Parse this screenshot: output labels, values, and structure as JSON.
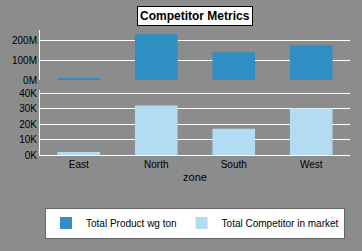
{
  "chart_data": [
    {
      "type": "bar",
      "title": "Competitor Metrics",
      "categories": [
        "East",
        "North",
        "South",
        "West"
      ],
      "series": [
        {
          "name": "Total Product wg ton",
          "color": "#2f8fc3",
          "values": [
            6000000,
            229000000,
            139000000,
            174000000
          ]
        }
      ],
      "ylim": [
        0,
        250000000
      ],
      "yticks": [
        {
          "value": 0,
          "label": "0M"
        },
        {
          "value": 100000000,
          "label": "100M"
        },
        {
          "value": 200000000,
          "label": "200M"
        }
      ],
      "grid": true,
      "legend": "bottom"
    },
    {
      "type": "bar",
      "xlabel": "zone",
      "categories": [
        "East",
        "North",
        "South",
        "West"
      ],
      "series": [
        {
          "name": "Total Competitor in market",
          "color": "#b3dcf3",
          "values": [
            2000,
            32000,
            17000,
            30000
          ]
        }
      ],
      "ylim": [
        0,
        42000
      ],
      "yticks": [
        {
          "value": 0,
          "label": "0K"
        },
        {
          "value": 10000,
          "label": "10K"
        },
        {
          "value": 20000,
          "label": "20K"
        },
        {
          "value": 30000,
          "label": "30K"
        },
        {
          "value": 40000,
          "label": "40K"
        }
      ],
      "grid": true,
      "legend": "bottom"
    }
  ]
}
